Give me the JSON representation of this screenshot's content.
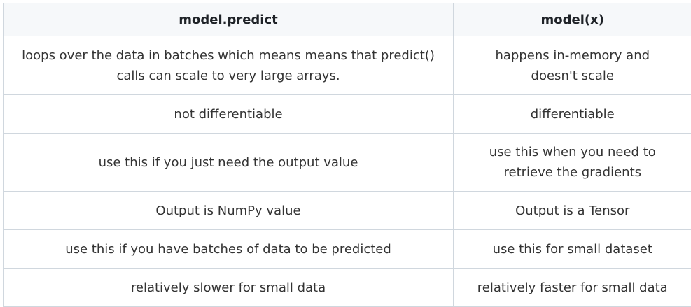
{
  "table": {
    "headers": [
      "model.predict",
      "model(x)"
    ],
    "rows": [
      [
        "loops over the data in batches which means means that predict() calls can scale to very large arrays.",
        "happens in-memory and doesn't scale"
      ],
      [
        "not differentiable",
        "differentiable"
      ],
      [
        "use this if you just need the output value",
        "use this when you need to retrieve the gradients"
      ],
      [
        "Output is NumPy value",
        "Output is a Tensor"
      ],
      [
        "use this if you have batches of data to be predicted",
        "use this for small dataset"
      ],
      [
        "relatively slower for small data",
        "relatively faster for small data"
      ]
    ]
  }
}
